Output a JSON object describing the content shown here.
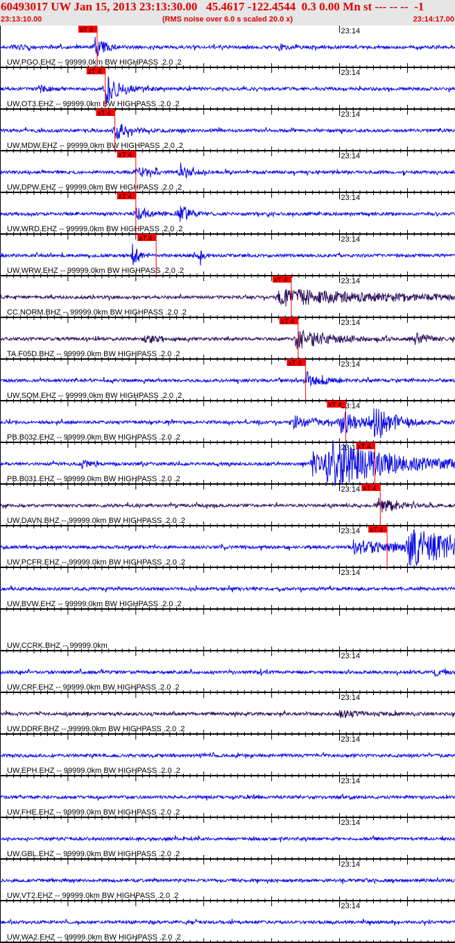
{
  "header": {
    "title": "60493017 UW Jan 15, 2013 23:13:30.00   45.4617 -122.4544  0.3 0.00 Mn st --- -- --  -1",
    "start_time": "23:13:10.00",
    "note": "(RMS noise over 6.0 s scaled 20.0 x)",
    "end_time": "23:14:17.00"
  },
  "colors": {
    "header_text": "#e00000",
    "header_bg": "#e6e6e6",
    "short_period": "#0a0ae6",
    "broadband": "#2b0f5c",
    "pick": "#ff0000"
  },
  "chart_data": {
    "type": "line",
    "title": "60493017 UW Jan 15, 2013 23:13:30.00",
    "x_range": [
      "23:13:10.00",
      "23:14:17.00"
    ],
    "time_tick_label": "23:14",
    "pick_label": "xT 4",
    "grid": false,
    "traces": [
      {
        "label": "UW.PGO.EHZ -- 99999.0km BW  HIGHPASS .2.0 .2",
        "type": "EHZ",
        "pick": "23:13:24.3"
      },
      {
        "label": "UW.OT3.EHZ -- 99999.0km BW  HIGHPASS .2.0 .2",
        "type": "EHZ",
        "pick": "23:13:25.5"
      },
      {
        "label": "UW.MDW.EHZ -- 99999.0km BW  HIGHPASS .2.0 .2",
        "type": "EHZ",
        "pick": "23:13:26.9"
      },
      {
        "label": "UW.DPW.EHZ -- 99999.0km BW  HIGHPASS .2.0 .2",
        "type": "EHZ",
        "pick": "23:13:30.0"
      },
      {
        "label": "UW.WRD.EHZ -- 99999.0km BW  HIGHPASS .2.0 .2",
        "type": "EHZ",
        "pick": "23:13:30.0"
      },
      {
        "label": "UW.WRW.EHZ -- 99999.0km BW  HIGHPASS .2.0 .2",
        "type": "EHZ",
        "pick": "23:13:33.0"
      },
      {
        "label": "CC.NORM.BHZ -- 99999.0km BW  HIGHPASS .2.0 .2",
        "type": "BHZ",
        "pick": "23:13:52.9"
      },
      {
        "label": "TA.F05D.BHZ -- 99999.0km BW  HIGHPASS .2.0 .2",
        "type": "BHZ",
        "pick": "23:13:53.9"
      },
      {
        "label": "UW.SQM.EHZ -- 99999.0km BW  HIGHPASS .2.0 .2",
        "type": "EHZ",
        "pick": "23:13:55.0"
      },
      {
        "label": "PB.B032.EHZ -- 99999.0km BW  HIGHPASS .2.0 .2",
        "type": "EHZ",
        "pick": "23:14:00.9"
      },
      {
        "label": "PB.B031.EHZ -- 99999.0km BW  HIGHPASS .2.0 .2",
        "type": "EHZ",
        "pick": "23:14:05.2"
      },
      {
        "label": "UW.DAVN.BHZ -- 99999.0km BW  HIGHPASS .2.0 .2",
        "type": "BHZ",
        "pick": "23:14:06.0"
      },
      {
        "label": "UW.PCFR.EHZ -- 99999.0km BW  HIGHPASS .2.0 .2",
        "type": "EHZ",
        "pick": "23:14:07.0"
      },
      {
        "label": "UW.BVW.EHZ -- 99999.0km BW  HIGHPASS .2.0 .2",
        "type": "EHZ",
        "pick": null
      },
      {
        "label": "UW.CCRK.BHZ -- 99999.0km",
        "type": "none",
        "pick": null
      },
      {
        "label": "UW.CRF.EHZ -- 99999.0km BW  HIGHPASS .2.0 .2",
        "type": "EHZ",
        "pick": null
      },
      {
        "label": "UW.DDRF.BHZ -- 99999.0km BW  HIGHPASS .2.0 .2",
        "type": "BHZ",
        "pick": null
      },
      {
        "label": "UW.EPH.EHZ -- 99999.0km BW  HIGHPASS .2.0 .2",
        "type": "EHZ",
        "pick": null
      },
      {
        "label": "UW.FHE.EHZ -- 99999.0km BW  HIGHPASS .2.0 .2",
        "type": "EHZ",
        "pick": null
      },
      {
        "label": "UW.GBL.EHZ -- 99999.0km BW  HIGHPASS .2.0 .2",
        "type": "EHZ",
        "pick": null
      },
      {
        "label": "UW.VT2.EHZ -- 99999.0km BW  HIGHPASS .2.0 .2",
        "type": "EHZ",
        "pick": null
      },
      {
        "label": "UW.WA2.EHZ -- 99999.0km BW  HIGHPASS .2.0 .2",
        "type": "EHZ",
        "pick": null
      }
    ]
  }
}
